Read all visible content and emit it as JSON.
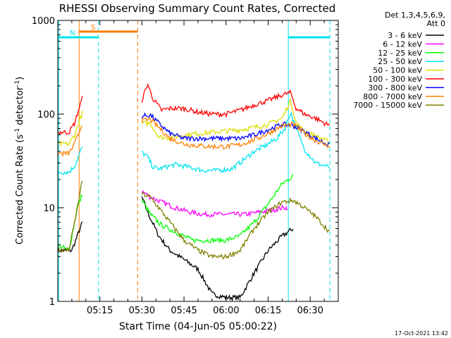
{
  "chart_data": {
    "type": "line",
    "title": "RHESSI Observing Summary Count Rates, Corrected",
    "xlabel": "Start Time (04-Jun-05 05:00:22)",
    "ylabel_main": "Corrected Count Rate (s",
    "ylabel_sup1": "-1",
    "ylabel_mid": " detector",
    "ylabel_sup2": "-1",
    "ylabel_end": ")",
    "x_unit": "minutes after 05:00",
    "xlim": [
      0,
      100
    ],
    "ylim": [
      1,
      1000
    ],
    "y_scale": "log",
    "x_ticks": [
      {
        "value": 15,
        "label": "05:15"
      },
      {
        "value": 30,
        "label": "05:30"
      },
      {
        "value": 45,
        "label": "05:45"
      },
      {
        "value": 60,
        "label": "06:00"
      },
      {
        "value": 75,
        "label": "06:15"
      },
      {
        "value": 90,
        "label": "06:30"
      }
    ],
    "y_ticks": [
      {
        "value": 1,
        "label": "1"
      },
      {
        "value": 10,
        "label": "10"
      },
      {
        "value": 100,
        "label": "100"
      },
      {
        "value": 1000,
        "label": "1000"
      }
    ],
    "legend_header": [
      "Det 1,3,4,5,6,9,",
      "Att 0"
    ],
    "legend_position": "right",
    "flag_bars": [
      {
        "label": "S",
        "color": "#ff7f00",
        "x_start": 7.5,
        "x_end": 28.5,
        "y": 760
      },
      {
        "label": "N",
        "color": "#00e5ee",
        "x_start": 0,
        "x_end": 14.5,
        "y": 660
      },
      {
        "label": "",
        "color": "#00e5ee",
        "x_start": 82,
        "x_end": 97,
        "y": 660
      }
    ],
    "vertical_lines": [
      {
        "x": 0.3,
        "color": "#00e5ee",
        "style": "solid"
      },
      {
        "x": 7.6,
        "color": "#ff7f00",
        "style": "solid"
      },
      {
        "x": 14.5,
        "color": "#00e5ee",
        "style": "dashed"
      },
      {
        "x": 28.5,
        "color": "#ff7f00",
        "style": "dashed"
      },
      {
        "x": 82.2,
        "color": "#00e5ee",
        "style": "solid"
      },
      {
        "x": 97.0,
        "color": "#00e5ee",
        "style": "dashed"
      }
    ],
    "segments": [
      [
        0,
        8.8
      ],
      [
        30,
        97
      ]
    ],
    "series": [
      {
        "name": "3 - 6 keV",
        "color": "#000000",
        "x": [
          0,
          5,
          8.8,
          30,
          32,
          36,
          40,
          45,
          50,
          55,
          60,
          65,
          70,
          75,
          80,
          84
        ],
        "y": [
          3.5,
          3.5,
          7,
          13,
          9,
          5,
          3.5,
          2.8,
          2.2,
          1.2,
          1.1,
          1.1,
          2,
          3.5,
          5,
          6
        ]
      },
      {
        "name": "6 - 12 keV",
        "color": "#ff00ff",
        "x": [
          30,
          33,
          37,
          42,
          47,
          52,
          57,
          62,
          67,
          72,
          77,
          80,
          82
        ],
        "y": [
          15,
          13,
          11.5,
          10,
          9,
          8.5,
          8.5,
          8.5,
          8.5,
          9,
          9.5,
          10,
          10
        ]
      },
      {
        "name": "12 - 25 keV",
        "color": "#00ff00",
        "x": [
          0,
          4,
          7,
          8.8,
          30,
          33,
          37,
          42,
          48,
          54,
          60,
          65,
          70,
          75,
          80,
          84
        ],
        "y": [
          4,
          3.5,
          10,
          14,
          12,
          8.5,
          6.5,
          5.5,
          4.5,
          4.5,
          4.5,
          5,
          7,
          11,
          18,
          22
        ]
      },
      {
        "name": "25 - 50 keV",
        "color": "#00e5ee",
        "x": [
          0,
          4,
          6,
          8.8,
          30,
          32,
          34,
          36,
          38,
          42,
          47,
          52,
          57,
          62,
          66,
          70,
          74,
          78,
          81,
          83,
          85,
          88,
          92,
          97
        ],
        "y": [
          24,
          24,
          28,
          45,
          39,
          35,
          27,
          26,
          27,
          29,
          27,
          25,
          25,
          26,
          32,
          40,
          46,
          55,
          70,
          105,
          70,
          42,
          30,
          27
        ]
      },
      {
        "name": "50 - 100 keV",
        "color": "#dddd00",
        "x": [
          0,
          4,
          6,
          8.8,
          30,
          33,
          36,
          40,
          45,
          50,
          55,
          60,
          65,
          70,
          75,
          80,
          83,
          85,
          88,
          92,
          97
        ],
        "y": [
          48,
          48,
          60,
          105,
          80,
          80,
          57,
          56,
          60,
          62,
          64,
          66,
          68,
          72,
          78,
          90,
          140,
          80,
          65,
          58,
          50
        ]
      },
      {
        "name": "100 - 300 keV",
        "color": "#ff0000",
        "x": [
          0,
          4,
          6,
          8.8,
          30,
          32,
          34,
          37,
          40,
          45,
          50,
          55,
          60,
          65,
          70,
          75,
          80,
          83,
          85,
          88,
          92,
          97
        ],
        "y": [
          64,
          64,
          80,
          150,
          140,
          210,
          145,
          110,
          115,
          115,
          105,
          100,
          100,
          110,
          125,
          140,
          160,
          170,
          115,
          100,
          90,
          75
        ]
      },
      {
        "name": "300 - 800 keV",
        "color": "#0000ff",
        "x": [
          30,
          33,
          36,
          40,
          45,
          50,
          55,
          60,
          65,
          70,
          75,
          80,
          84,
          88,
          92,
          97
        ],
        "y": [
          95,
          98,
          80,
          62,
          55,
          55,
          55,
          55,
          55,
          60,
          68,
          78,
          75,
          65,
          55,
          46
        ]
      },
      {
        "name": "800 - 7000 keV",
        "color": "#ff7f00",
        "x": [
          0,
          4,
          6,
          8.8,
          30,
          33,
          36,
          40,
          45,
          50,
          55,
          60,
          65,
          70,
          75,
          80,
          84,
          88,
          92,
          97
        ],
        "y": [
          38,
          38,
          48,
          80,
          85,
          88,
          72,
          55,
          48,
          46,
          45,
          45,
          47,
          53,
          62,
          75,
          78,
          62,
          52,
          45
        ]
      },
      {
        "name": "7000 - 15000 keV",
        "color": "#808000",
        "x": [
          0,
          4,
          6,
          8.8,
          30,
          33,
          36,
          40,
          45,
          50,
          55,
          60,
          65,
          70,
          75,
          80,
          84,
          88,
          92,
          97
        ],
        "y": [
          3.5,
          3.5,
          7,
          20,
          14,
          13,
          10,
          7,
          4.5,
          3.5,
          3,
          3,
          3.5,
          6,
          9,
          11.5,
          12,
          10,
          8,
          5.5
        ]
      }
    ]
  },
  "footer": {
    "timestamp": "17-Oct-2021 13:42"
  }
}
